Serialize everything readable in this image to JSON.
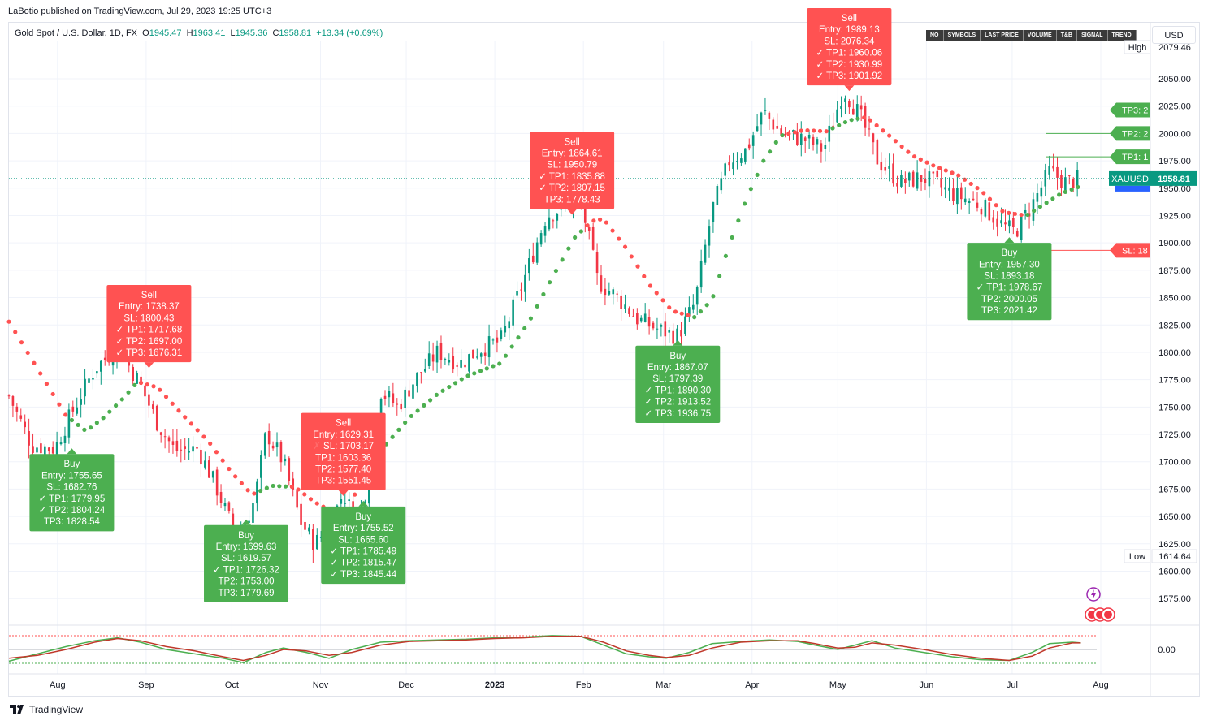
{
  "header": {
    "published": "LaBotio published on TradingView.com, Jul 29, 2023 19:25 UTC+3",
    "symbol": "Gold Spot / U.S. Dollar, 1D, FX",
    "o_label": "O",
    "o": "1945.47",
    "h_label": "H",
    "h": "1963.41",
    "l_label": "L",
    "l": "1945.36",
    "c_label": "C",
    "c": "1958.81",
    "change": "+13.34 (+0.69%)",
    "currency": "USD"
  },
  "toolbar": [
    "NO",
    "SYMBOLS",
    "LAST PRICE",
    "VOLUME",
    "T&B",
    "SIGNAL",
    "TREND"
  ],
  "brand": "TradingView",
  "colors": {
    "up": "#089981",
    "down": "#f23645",
    "buy": "#4caf50",
    "sell": "#ff5252",
    "trail_up": "#4caf50",
    "trail_down": "#ff5252"
  },
  "chart_data": {
    "type": "candlestick",
    "symbol": "XAUUSD",
    "timeframe": "1D",
    "ylim": [
      1555,
      2085
    ],
    "y_ticks": [
      "1575.00",
      "1600.00",
      "1625.00",
      "1650.00",
      "1675.00",
      "1700.00",
      "1725.00",
      "1750.00",
      "1775.00",
      "1800.00",
      "1825.00",
      "1850.00",
      "1875.00",
      "1900.00",
      "1925.00",
      "1950.00",
      "1975.00",
      "2000.00",
      "2025.00",
      "2050.00"
    ],
    "x_ticks": [
      {
        "label": "Aug",
        "day": 17
      },
      {
        "label": "Sep",
        "day": 48
      },
      {
        "label": "Oct",
        "day": 78
      },
      {
        "label": "Nov",
        "day": 109
      },
      {
        "label": "Dec",
        "day": 139
      },
      {
        "label": "2023",
        "day": 170
      },
      {
        "label": "Feb",
        "day": 201
      },
      {
        "label": "Mar",
        "day": 229
      },
      {
        "label": "Apr",
        "day": 260
      },
      {
        "label": "May",
        "day": 290
      },
      {
        "label": "Jun",
        "day": 321
      },
      {
        "label": "Jul",
        "day": 351
      },
      {
        "label": "Aug",
        "day": 382
      }
    ],
    "price_path": [
      [
        0,
        1760
      ],
      [
        8,
        1715
      ],
      [
        16,
        1712
      ],
      [
        22,
        1745
      ],
      [
        30,
        1785
      ],
      [
        38,
        1805
      ],
      [
        45,
        1775
      ],
      [
        52,
        1735
      ],
      [
        58,
        1710
      ],
      [
        66,
        1712
      ],
      [
        72,
        1680
      ],
      [
        80,
        1628
      ],
      [
        86,
        1665
      ],
      [
        90,
        1727
      ],
      [
        96,
        1700
      ],
      [
        102,
        1645
      ],
      [
        107,
        1625
      ],
      [
        112,
        1640
      ],
      [
        117,
        1672
      ],
      [
        122,
        1640
      ],
      [
        126,
        1690
      ],
      [
        130,
        1765
      ],
      [
        136,
        1750
      ],
      [
        142,
        1775
      ],
      [
        150,
        1800
      ],
      [
        158,
        1790
      ],
      [
        166,
        1805
      ],
      [
        172,
        1810
      ],
      [
        180,
        1865
      ],
      [
        188,
        1925
      ],
      [
        196,
        1935
      ],
      [
        200,
        1940
      ],
      [
        206,
        1865
      ],
      [
        213,
        1850
      ],
      [
        220,
        1830
      ],
      [
        228,
        1820
      ],
      [
        234,
        1815
      ],
      [
        240,
        1845
      ],
      [
        246,
        1930
      ],
      [
        252,
        1975
      ],
      [
        258,
        1985
      ],
      [
        264,
        2020
      ],
      [
        270,
        2000
      ],
      [
        278,
        1995
      ],
      [
        285,
        1985
      ],
      [
        292,
        2040
      ],
      [
        298,
        2015
      ],
      [
        304,
        1975
      ],
      [
        312,
        1955
      ],
      [
        320,
        1960
      ],
      [
        330,
        1945
      ],
      [
        340,
        1935
      ],
      [
        348,
        1915
      ],
      [
        352,
        1910
      ],
      [
        358,
        1935
      ],
      [
        364,
        1965
      ],
      [
        370,
        1955
      ],
      [
        375,
        1958.81
      ]
    ],
    "trailing_stop": [
      [
        0,
        1828
      ],
      [
        10,
        1785
      ],
      [
        20,
        1742
      ],
      [
        27,
        1728
      ],
      [
        33,
        1740
      ],
      [
        40,
        1758
      ],
      [
        45,
        1773
      ],
      [
        52,
        1768
      ],
      [
        60,
        1745
      ],
      [
        70,
        1718
      ],
      [
        78,
        1690
      ],
      [
        85,
        1670
      ],
      [
        92,
        1678
      ],
      [
        100,
        1677
      ],
      [
        107,
        1663
      ],
      [
        115,
        1652
      ],
      [
        119,
        1655
      ],
      [
        121,
        1670
      ],
      [
        124,
        1687
      ],
      [
        130,
        1710
      ],
      [
        140,
        1740
      ],
      [
        150,
        1762
      ],
      [
        160,
        1778
      ],
      [
        172,
        1790
      ],
      [
        182,
        1828
      ],
      [
        190,
        1868
      ],
      [
        198,
        1905
      ],
      [
        204,
        1920
      ],
      [
        208,
        1922
      ],
      [
        216,
        1895
      ],
      [
        224,
        1862
      ],
      [
        232,
        1838
      ],
      [
        240,
        1832
      ],
      [
        246,
        1848
      ],
      [
        252,
        1898
      ],
      [
        258,
        1940
      ],
      [
        264,
        1975
      ],
      [
        270,
        1998
      ],
      [
        278,
        2003
      ],
      [
        286,
        2002
      ],
      [
        294,
        2012
      ],
      [
        300,
        2015
      ],
      [
        308,
        1998
      ],
      [
        316,
        1980
      ],
      [
        324,
        1970
      ],
      [
        332,
        1962
      ],
      [
        340,
        1948
      ],
      [
        348,
        1928
      ],
      [
        356,
        1925
      ],
      [
        362,
        1935
      ],
      [
        368,
        1945
      ],
      [
        375,
        1952
      ]
    ],
    "current_price": {
      "label": "XAUUSD",
      "value": "1958.81"
    },
    "high_marker": {
      "label": "High",
      "value": "2079.46"
    },
    "low_marker": {
      "label": "Low",
      "value": "1614.64"
    },
    "signals": [
      {
        "type": "Buy",
        "day": 22,
        "label_price": 1713,
        "lines": [
          {
            "text": "Buy",
            "mark": ""
          },
          {
            "text": "Entry: 1755.65",
            "mark": ""
          },
          {
            "text": "SL: 1682.76",
            "mark": ""
          },
          {
            "text": "TP1: 1779.95",
            "mark": "✓"
          },
          {
            "text": "TP2: 1804.24",
            "mark": "✓"
          },
          {
            "text": "TP3: 1828.54",
            "mark": ""
          }
        ]
      },
      {
        "type": "Sell",
        "day": 49,
        "label_price": 1785,
        "lines": [
          {
            "text": "Sell",
            "mark": ""
          },
          {
            "text": "Entry: 1738.37",
            "mark": ""
          },
          {
            "text": "SL: 1800.43",
            "mark": ""
          },
          {
            "text": "TP1: 1717.68",
            "mark": "✓"
          },
          {
            "text": "TP2: 1697.00",
            "mark": "✓"
          },
          {
            "text": "TP3: 1676.31",
            "mark": "✓"
          }
        ]
      },
      {
        "type": "Buy",
        "day": 83,
        "label_price": 1648,
        "lines": [
          {
            "text": "Buy",
            "mark": ""
          },
          {
            "text": "Entry: 1699.63",
            "mark": ""
          },
          {
            "text": "SL: 1619.57",
            "mark": ""
          },
          {
            "text": "TP1: 1726.32",
            "mark": "✓"
          },
          {
            "text": "TP2: 1753.00",
            "mark": ""
          },
          {
            "text": "TP3: 1779.69",
            "mark": ""
          }
        ]
      },
      {
        "type": "Sell",
        "day": 117,
        "label_price": 1668,
        "lines": [
          {
            "text": "Sell",
            "mark": ""
          },
          {
            "text": "Entry: 1629.31",
            "mark": ""
          },
          {
            "text": "SL: 1703.17",
            "mark": "✗"
          },
          {
            "text": "TP1: 1603.36",
            "mark": ""
          },
          {
            "text": "TP2: 1577.40",
            "mark": ""
          },
          {
            "text": "TP3: 1551.45",
            "mark": ""
          }
        ]
      },
      {
        "type": "Buy",
        "day": 124,
        "label_price": 1665,
        "lines": [
          {
            "text": "Buy",
            "mark": ""
          },
          {
            "text": "Entry: 1755.52",
            "mark": ""
          },
          {
            "text": "SL: 1665.60",
            "mark": ""
          },
          {
            "text": "TP1: 1785.49",
            "mark": "✓"
          },
          {
            "text": "TP2: 1815.47",
            "mark": "✓"
          },
          {
            "text": "TP3: 1845.44",
            "mark": "✓"
          }
        ]
      },
      {
        "type": "Sell",
        "day": 197,
        "label_price": 1925,
        "lines": [
          {
            "text": "Sell",
            "mark": ""
          },
          {
            "text": "Entry: 1864.61",
            "mark": ""
          },
          {
            "text": "SL: 1950.79",
            "mark": ""
          },
          {
            "text": "TP1: 1835.88",
            "mark": "✓"
          },
          {
            "text": "TP2: 1807.15",
            "mark": "✓"
          },
          {
            "text": "TP3: 1778.43",
            "mark": ""
          }
        ]
      },
      {
        "type": "Buy",
        "day": 234,
        "label_price": 1812,
        "lines": [
          {
            "text": "Buy",
            "mark": ""
          },
          {
            "text": "Entry: 1867.07",
            "mark": ""
          },
          {
            "text": "SL: 1797.39",
            "mark": ""
          },
          {
            "text": "TP1: 1890.30",
            "mark": "✓"
          },
          {
            "text": "TP2: 1913.52",
            "mark": "✓"
          },
          {
            "text": "TP3: 1936.75",
            "mark": "✓"
          }
        ]
      },
      {
        "type": "Sell",
        "day": 294,
        "label_price": 2038,
        "lines": [
          {
            "text": "Sell",
            "mark": ""
          },
          {
            "text": "Entry: 1989.13",
            "mark": ""
          },
          {
            "text": "SL: 2076.34",
            "mark": ""
          },
          {
            "text": "TP1: 1960.06",
            "mark": "✓"
          },
          {
            "text": "TP2: 1930.99",
            "mark": "✓"
          },
          {
            "text": "TP3: 1901.92",
            "mark": "✓"
          }
        ]
      },
      {
        "type": "Buy",
        "day": 350,
        "label_price": 1906,
        "lines": [
          {
            "text": "Buy",
            "mark": ""
          },
          {
            "text": "Entry: 1957.30",
            "mark": ""
          },
          {
            "text": "SL: 1893.18",
            "mark": ""
          },
          {
            "text": "TP1: 1978.67",
            "mark": "✓"
          },
          {
            "text": "TP2: 2000.05",
            "mark": ""
          },
          {
            "text": "TP3: 2021.42",
            "mark": ""
          }
        ]
      }
    ],
    "target_lines": [
      {
        "label": "TP3: 2",
        "value": 2021.42,
        "color": "#4caf50"
      },
      {
        "label": "TP2: 2",
        "value": 2000.05,
        "color": "#4caf50"
      },
      {
        "label": "TP1: 1",
        "value": 1978.67,
        "color": "#4caf50"
      },
      {
        "label": "SL: 18",
        "value": 1893.18,
        "color": "#ff5252"
      }
    ],
    "oscillator": {
      "zero_label": "0.00",
      "fast": [
        [
          0,
          -0.8
        ],
        [
          10,
          -0.3
        ],
        [
          20,
          0.2
        ],
        [
          30,
          0.6
        ],
        [
          38,
          0.8
        ],
        [
          46,
          0.5
        ],
        [
          55,
          0.0
        ],
        [
          65,
          -0.3
        ],
        [
          75,
          -0.6
        ],
        [
          82,
          -0.9
        ],
        [
          90,
          -0.2
        ],
        [
          96,
          0.1
        ],
        [
          104,
          -0.2
        ],
        [
          112,
          -0.6
        ],
        [
          120,
          0.0
        ],
        [
          130,
          0.5
        ],
        [
          140,
          0.6
        ],
        [
          150,
          0.65
        ],
        [
          160,
          0.7
        ],
        [
          170,
          0.8
        ],
        [
          180,
          0.85
        ],
        [
          190,
          0.95
        ],
        [
          200,
          0.9
        ],
        [
          208,
          0.3
        ],
        [
          216,
          -0.3
        ],
        [
          224,
          -0.5
        ],
        [
          230,
          -0.6
        ],
        [
          238,
          -0.2
        ],
        [
          246,
          0.4
        ],
        [
          256,
          0.55
        ],
        [
          266,
          0.65
        ],
        [
          276,
          0.55
        ],
        [
          282,
          0.3
        ],
        [
          290,
          0.0
        ],
        [
          296,
          0.3
        ],
        [
          302,
          0.6
        ],
        [
          310,
          0.1
        ],
        [
          320,
          -0.2
        ],
        [
          330,
          -0.5
        ],
        [
          340,
          -0.7
        ],
        [
          350,
          -0.75
        ],
        [
          358,
          -0.2
        ],
        [
          364,
          0.4
        ],
        [
          372,
          0.5
        ],
        [
          375,
          0.45
        ]
      ],
      "slow": [
        [
          0,
          -0.6
        ],
        [
          10,
          -0.4
        ],
        [
          20,
          0.0
        ],
        [
          30,
          0.5
        ],
        [
          38,
          0.75
        ],
        [
          46,
          0.6
        ],
        [
          55,
          0.2
        ],
        [
          65,
          -0.1
        ],
        [
          75,
          -0.5
        ],
        [
          82,
          -0.75
        ],
        [
          90,
          -0.4
        ],
        [
          96,
          0.0
        ],
        [
          104,
          -0.1
        ],
        [
          112,
          -0.4
        ],
        [
          120,
          -0.2
        ],
        [
          130,
          0.3
        ],
        [
          140,
          0.55
        ],
        [
          150,
          0.6
        ],
        [
          160,
          0.65
        ],
        [
          170,
          0.75
        ],
        [
          180,
          0.8
        ],
        [
          190,
          0.9
        ],
        [
          200,
          0.9
        ],
        [
          208,
          0.5
        ],
        [
          216,
          -0.1
        ],
        [
          224,
          -0.4
        ],
        [
          230,
          -0.55
        ],
        [
          238,
          -0.4
        ],
        [
          246,
          0.1
        ],
        [
          256,
          0.5
        ],
        [
          266,
          0.6
        ],
        [
          276,
          0.6
        ],
        [
          282,
          0.4
        ],
        [
          290,
          0.1
        ],
        [
          296,
          0.15
        ],
        [
          302,
          0.45
        ],
        [
          310,
          0.3
        ],
        [
          320,
          0.0
        ],
        [
          330,
          -0.35
        ],
        [
          340,
          -0.6
        ],
        [
          350,
          -0.75
        ],
        [
          358,
          -0.45
        ],
        [
          364,
          0.1
        ],
        [
          372,
          0.45
        ],
        [
          375,
          0.45
        ]
      ]
    }
  }
}
